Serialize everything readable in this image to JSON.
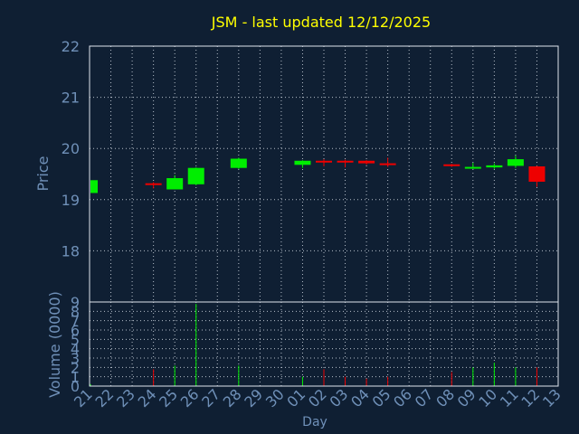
{
  "colors": {
    "background": "#0f1f33",
    "title": "#ffff00",
    "axis_text": "#6f90b8",
    "frame": "#dfe5ee",
    "grid": "#dfe5ee",
    "up": "#00ee00",
    "down": "#ee0000"
  },
  "chart_data": [
    {
      "type": "candlestick",
      "title": "JSM - last updated 12/12/2025",
      "ylabel": "Price",
      "ylim": [
        17,
        22
      ],
      "yticks": [
        18,
        19,
        20,
        21,
        22
      ],
      "grid": true,
      "x_index_range": [
        0,
        22
      ],
      "candles": [
        {
          "x": 0,
          "open": 19.13,
          "close": 19.38,
          "low": 19.13,
          "high": 19.4
        },
        {
          "x": 3,
          "open": 19.32,
          "close": 19.3,
          "low": 19.22,
          "high": 19.34
        },
        {
          "x": 4,
          "open": 19.2,
          "close": 19.42,
          "low": 19.2,
          "high": 19.48
        },
        {
          "x": 5,
          "open": 19.3,
          "close": 19.62,
          "low": 19.28,
          "high": 19.63
        },
        {
          "x": 7,
          "open": 19.62,
          "close": 19.8,
          "low": 19.6,
          "high": 19.82
        },
        {
          "x": 10,
          "open": 19.68,
          "close": 19.76,
          "low": 19.62,
          "high": 19.77
        },
        {
          "x": 11,
          "open": 19.76,
          "close": 19.73,
          "low": 19.65,
          "high": 19.79
        },
        {
          "x": 12,
          "open": 19.76,
          "close": 19.73,
          "low": 19.63,
          "high": 19.78
        },
        {
          "x": 13,
          "open": 19.76,
          "close": 19.71,
          "low": 19.68,
          "high": 19.77
        },
        {
          "x": 14,
          "open": 19.71,
          "close": 19.69,
          "low": 19.64,
          "high": 19.82
        },
        {
          "x": 17,
          "open": 19.69,
          "close": 19.67,
          "low": 19.64,
          "high": 19.7
        },
        {
          "x": 18,
          "open": 19.61,
          "close": 19.64,
          "low": 19.6,
          "high": 19.72
        },
        {
          "x": 19,
          "open": 19.63,
          "close": 19.67,
          "low": 19.6,
          "high": 19.71
        },
        {
          "x": 20,
          "open": 19.66,
          "close": 19.79,
          "low": 19.62,
          "high": 19.86
        },
        {
          "x": 21,
          "open": 19.65,
          "close": 19.35,
          "low": 19.25,
          "high": 19.66
        }
      ]
    },
    {
      "type": "bar",
      "ylabel": "Volume (0000)",
      "xlabel": "Day",
      "ylim": [
        0,
        9
      ],
      "yticks": [
        0,
        1,
        2,
        3,
        4,
        5,
        6,
        7,
        8,
        9
      ],
      "grid": true,
      "categories": [
        "21",
        "22",
        "23",
        "24",
        "25",
        "26",
        "27",
        "28",
        "29",
        "30",
        "01",
        "02",
        "03",
        "04",
        "05",
        "06",
        "07",
        "08",
        "09",
        "10",
        "11",
        "12",
        "13"
      ],
      "bars": [
        {
          "x": 0,
          "value": 0.2,
          "direction": "up"
        },
        {
          "x": 3,
          "value": 1.8,
          "direction": "down"
        },
        {
          "x": 4,
          "value": 2.2,
          "direction": "up"
        },
        {
          "x": 5,
          "value": 8.8,
          "direction": "up"
        },
        {
          "x": 7,
          "value": 2.2,
          "direction": "up"
        },
        {
          "x": 10,
          "value": 1.0,
          "direction": "up"
        },
        {
          "x": 11,
          "value": 1.8,
          "direction": "down"
        },
        {
          "x": 12,
          "value": 1.0,
          "direction": "down"
        },
        {
          "x": 13,
          "value": 0.8,
          "direction": "down"
        },
        {
          "x": 14,
          "value": 1.0,
          "direction": "down"
        },
        {
          "x": 17,
          "value": 1.5,
          "direction": "down"
        },
        {
          "x": 18,
          "value": 2.0,
          "direction": "up"
        },
        {
          "x": 19,
          "value": 2.5,
          "direction": "up"
        },
        {
          "x": 20,
          "value": 2.0,
          "direction": "up"
        },
        {
          "x": 21,
          "value": 2.0,
          "direction": "down"
        }
      ]
    }
  ]
}
